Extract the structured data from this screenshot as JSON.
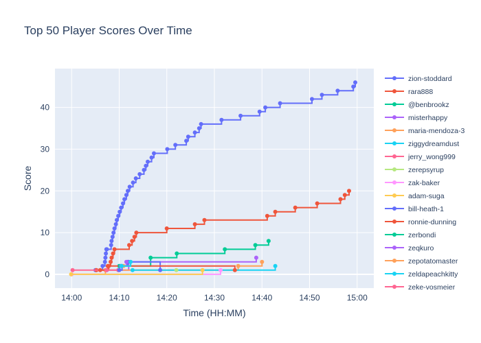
{
  "chart_data": {
    "type": "line",
    "title": "Top 50 Player Scores Over Time",
    "xlabel": "Time (HH:MM)",
    "ylabel": "Score",
    "xlim_minutes": [
      -3.5,
      63.5
    ],
    "ylim": [
      -3.3,
      49.3
    ],
    "x_ticks": [
      {
        "minutes": 0,
        "label": "14:00"
      },
      {
        "minutes": 10,
        "label": "14:10"
      },
      {
        "minutes": 20,
        "label": "14:20"
      },
      {
        "minutes": 30,
        "label": "14:30"
      },
      {
        "minutes": 40,
        "label": "14:40"
      },
      {
        "minutes": 50,
        "label": "14:50"
      },
      {
        "minutes": 60,
        "label": "15:00"
      }
    ],
    "y_ticks": [
      0,
      10,
      20,
      30,
      40
    ],
    "grid": true,
    "legend_position": "right",
    "line_shape": "step",
    "series": [
      {
        "name": "zion-stoddard",
        "color": "#636efa",
        "x": [
          5.0,
          6.5,
          7.0,
          7.1,
          7.2,
          7.3,
          7.4,
          8.3,
          8.4,
          8.6,
          8.8,
          9.0,
          9.3,
          9.5,
          9.8,
          10.1,
          10.4,
          10.8,
          11.1,
          11.5,
          11.8,
          12.2,
          12.9,
          13.5,
          14.3,
          15.2,
          15.6,
          16.0,
          16.8,
          17.3,
          20.1,
          21.8,
          24.1,
          24.5,
          25.9,
          26.8,
          27.2,
          31.5,
          35.5,
          39.5,
          40.7,
          43.8,
          50.5,
          52.6,
          55.9,
          59.2,
          59.6
        ],
        "y": [
          1,
          2,
          3,
          4,
          5,
          6,
          6,
          7,
          8,
          9,
          10,
          11,
          12,
          13,
          14,
          15,
          16,
          17,
          18,
          19,
          20,
          21,
          22,
          23,
          24,
          25,
          26,
          27,
          28,
          29,
          30,
          31,
          32,
          33,
          34,
          35,
          36,
          37,
          38,
          39,
          40,
          41,
          42,
          43,
          44,
          45,
          46
        ]
      },
      {
        "name": "rara888",
        "color": "#ef553b",
        "x": [
          5.2,
          7.8,
          8.2,
          8.4,
          8.7,
          9.0,
          12.1,
          12.7,
          13.2,
          13.6,
          20.0,
          25.9,
          27.9,
          41.1,
          42.8,
          47.0,
          51.6,
          56.5,
          57.4,
          58.3
        ],
        "y": [
          1,
          2,
          3,
          4,
          5,
          6,
          7,
          8,
          9,
          10,
          11,
          12,
          13,
          14,
          15,
          16,
          17,
          18,
          19,
          20
        ]
      },
      {
        "name": "@benbrookz",
        "color": "#00cc96",
        "x": [
          10.0,
          16.6,
          22.1,
          32.2,
          38.6,
          41.4
        ],
        "y": [
          2,
          4,
          5,
          6,
          7,
          8
        ]
      },
      {
        "name": "misterhappy",
        "color": "#ab63fa",
        "x": [
          7.4,
          12.0,
          38.8
        ],
        "y": [
          1,
          3,
          4
        ]
      },
      {
        "name": "maria-mendoza-3",
        "color": "#ffa15a",
        "x": [
          0.0,
          7.1,
          35.0,
          40.0
        ],
        "y": [
          0,
          1,
          2,
          3
        ]
      },
      {
        "name": "ziggydreamdust",
        "color": "#19d3f3",
        "x": [
          12.8,
          42.8
        ],
        "y": [
          1,
          2
        ]
      },
      {
        "name": "jerry_wong999",
        "color": "#ff6692",
        "x": [
          0.2,
          9.8
        ],
        "y": [
          1,
          1
        ]
      },
      {
        "name": "zerepsyrup",
        "color": "#b6e880",
        "x": [
          22.0
        ],
        "y": [
          1
        ]
      },
      {
        "name": "zak-baker",
        "color": "#ff97ff",
        "x": [
          0.0,
          31.3
        ],
        "y": [
          0,
          1
        ]
      },
      {
        "name": "adam-suga",
        "color": "#fecb52",
        "x": [
          -0.1,
          27.5
        ],
        "y": [
          0,
          1
        ]
      },
      {
        "name": "bill-heath-1",
        "color": "#636efa",
        "x": [
          10.0,
          10.6,
          11.8,
          18.6
        ],
        "y": [
          1,
          2,
          3,
          1
        ]
      },
      {
        "name": "ronnie-dunning",
        "color": "#ef553b",
        "x": [
          6.0,
          7.6,
          34.3
        ],
        "y": [
          1,
          2,
          1
        ]
      },
      {
        "name": "zerbondi",
        "color": "#00cc96",
        "x": [
          10.2
        ],
        "y": [
          2
        ]
      },
      {
        "name": "zeqkuro",
        "color": "#ab63fa",
        "x": [
          10.4,
          11.5
        ],
        "y": [
          2,
          3
        ]
      },
      {
        "name": "zepotatomaster",
        "color": "#ffa15a",
        "x": [
          10.9
        ],
        "y": [
          2
        ]
      },
      {
        "name": "zeldapeachkitty",
        "color": "#19d3f3",
        "x": [
          10.5,
          12.4
        ],
        "y": [
          2,
          3
        ]
      },
      {
        "name": "zeke-vosmeier",
        "color": "#ff6692",
        "x": [
          7.3
        ],
        "y": [
          1
        ]
      }
    ]
  }
}
